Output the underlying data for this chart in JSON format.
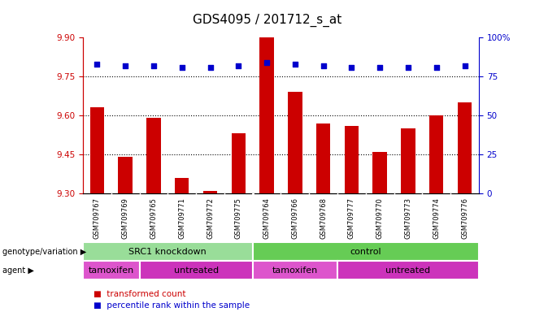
{
  "title": "GDS4095 / 201712_s_at",
  "samples": [
    "GSM709767",
    "GSM709769",
    "GSM709765",
    "GSM709771",
    "GSM709772",
    "GSM709775",
    "GSM709764",
    "GSM709766",
    "GSM709768",
    "GSM709777",
    "GSM709770",
    "GSM709773",
    "GSM709774",
    "GSM709776"
  ],
  "bar_values": [
    9.63,
    9.44,
    9.59,
    9.36,
    9.31,
    9.53,
    9.9,
    9.69,
    9.57,
    9.56,
    9.46,
    9.55,
    9.6,
    9.65
  ],
  "dot_values": [
    83,
    82,
    82,
    81,
    81,
    82,
    84,
    83,
    82,
    81,
    81,
    81,
    81,
    82
  ],
  "ylim_left": [
    9.3,
    9.9
  ],
  "ylim_right": [
    0,
    100
  ],
  "yticks_left": [
    9.3,
    9.45,
    9.6,
    9.75,
    9.9
  ],
  "yticks_right": [
    0,
    25,
    50,
    75,
    100
  ],
  "ytick_labels_right": [
    "0",
    "25",
    "50",
    "75",
    "100%"
  ],
  "hlines": [
    9.45,
    9.6,
    9.75
  ],
  "bar_color": "#cc0000",
  "dot_color": "#0000cc",
  "bar_bottom": 9.3,
  "genotype_groups": [
    {
      "label": "SRC1 knockdown",
      "start": 0,
      "end": 6,
      "color": "#99dd99"
    },
    {
      "label": "control",
      "start": 6,
      "end": 14,
      "color": "#66cc55"
    }
  ],
  "agent_groups": [
    {
      "label": "tamoxifen",
      "start": 0,
      "end": 2,
      "color": "#dd55cc"
    },
    {
      "label": "untreated",
      "start": 2,
      "end": 6,
      "color": "#cc33bb"
    },
    {
      "label": "tamoxifen",
      "start": 6,
      "end": 9,
      "color": "#dd55cc"
    },
    {
      "label": "untreated",
      "start": 9,
      "end": 14,
      "color": "#cc33bb"
    }
  ],
  "title_fontsize": 11,
  "tick_fontsize": 7.5,
  "sample_fontsize": 6,
  "bar_width": 0.5,
  "bg_color": "#e8e8e8"
}
